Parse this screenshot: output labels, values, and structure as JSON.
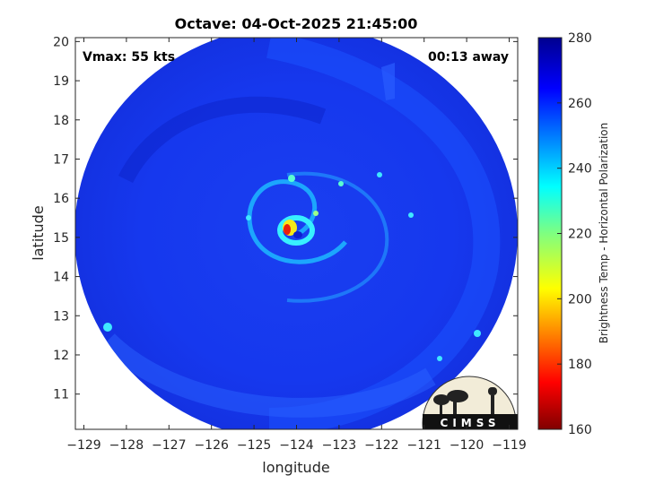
{
  "chart_data": {
    "type": "heatmap",
    "title": "Octave: 04-Oct-2025 21:45:00",
    "xlabel": "longitude",
    "ylabel": "latitude",
    "xlim": [
      -129.2,
      -118.8
    ],
    "ylim": [
      10.1,
      20.1
    ],
    "xticks": [
      -129,
      -128,
      -127,
      -126,
      -125,
      -124,
      -123,
      -122,
      -121,
      -120,
      -119
    ],
    "yticks": [
      11,
      12,
      13,
      14,
      15,
      16,
      17,
      18,
      19,
      20
    ],
    "storm_center": {
      "lon": -124.15,
      "lat": 15.1
    },
    "annotations": {
      "vmax": "Vmax: 55 kts",
      "time_offset": "00:13 away"
    },
    "colorbar": {
      "label": "Brightness Temp - Horizontal Polarization",
      "min": 160,
      "max": 280,
      "ticks": [
        160,
        180,
        200,
        220,
        240,
        260,
        280
      ],
      "colormap": "jet"
    },
    "logo_text": "CIMSS",
    "grid": false
  }
}
